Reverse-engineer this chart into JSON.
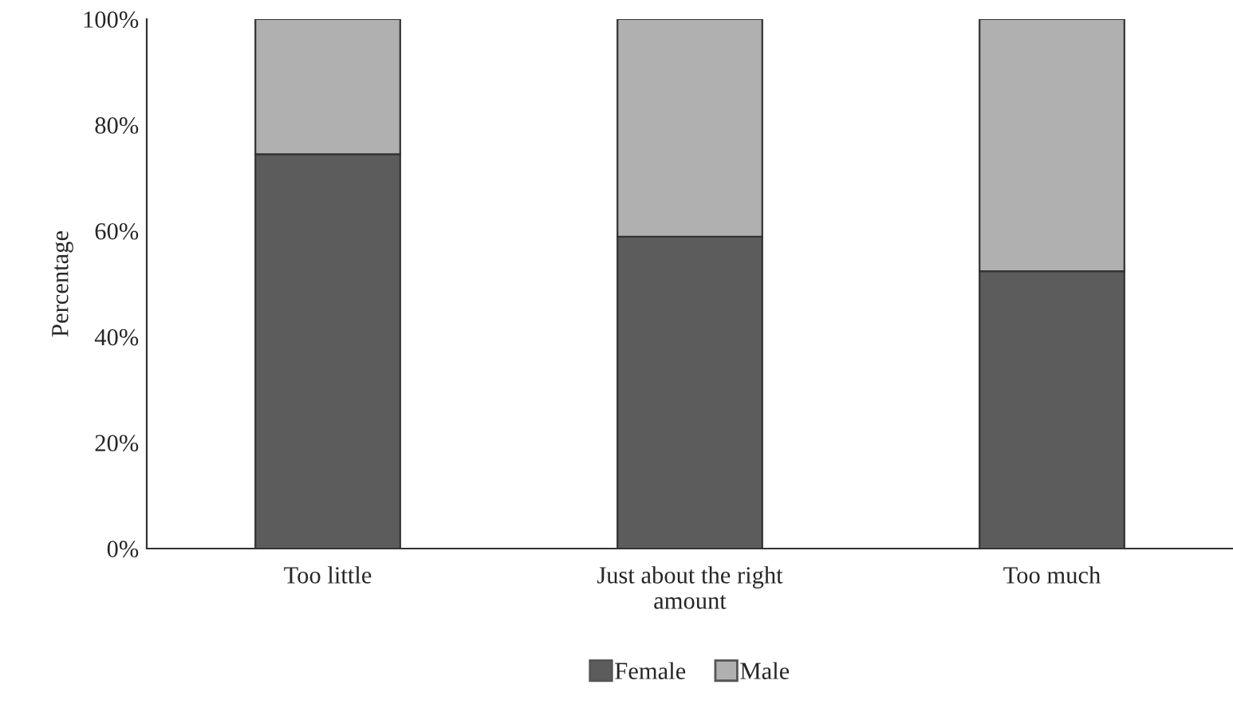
{
  "chart_data": {
    "type": "bar",
    "stacked": true,
    "ylabel": "Percentage",
    "categories": [
      "Too little",
      "Just about the right\namount",
      "Too much"
    ],
    "series": [
      {
        "name": "Female",
        "color": "#5c5c5c",
        "values": [
          74.5,
          58.9,
          52.4
        ]
      },
      {
        "name": "Male",
        "color": "#b0b0b0",
        "values": [
          25.5,
          41.1,
          47.6
        ]
      }
    ],
    "ylim": [
      0,
      100
    ],
    "yticks": [
      {
        "value": 0,
        "label": "0%"
      },
      {
        "value": 20,
        "label": "20%"
      },
      {
        "value": 40,
        "label": "40%"
      },
      {
        "value": 60,
        "label": "60%"
      },
      {
        "value": 80,
        "label": "80%"
      },
      {
        "value": 100,
        "label": "100%"
      }
    ],
    "grid": false,
    "legend": "bottom"
  }
}
